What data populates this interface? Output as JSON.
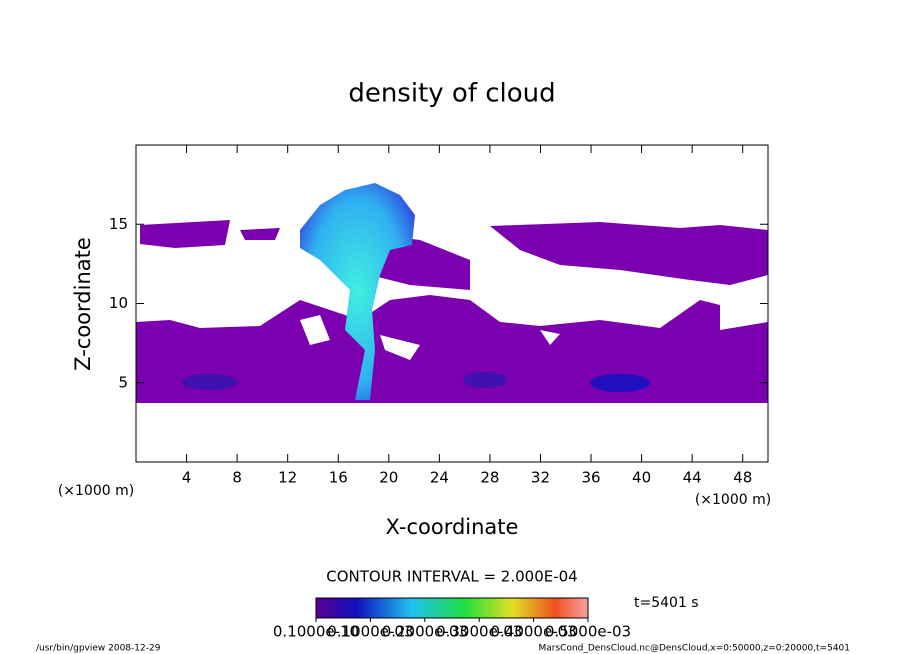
{
  "chart_data": {
    "type": "contour",
    "title": "density of cloud",
    "x_label": "X-coordinate",
    "y_label": "Z-coordinate",
    "x_unit": "(×1000 m)",
    "y_unit": "(×1000 m)",
    "xlim": [
      0,
      50
    ],
    "ylim": [
      0,
      20
    ],
    "xticks": [
      4,
      8,
      12,
      16,
      20,
      24,
      28,
      32,
      36,
      40,
      44,
      48
    ],
    "yticks": [
      5,
      10,
      15
    ],
    "contour_interval": "CONTOUR INTERVAL = 2.000E-04",
    "colorbar": {
      "lim": [
        0,
        0.0005
      ],
      "ticks": [
        {
          "value": 1e-11,
          "label": "0.1000e-10"
        },
        {
          "value": 0.0001,
          "label": "0.1000e-03"
        },
        {
          "value": 0.0002,
          "label": "0.2000e-03"
        },
        {
          "value": 0.0003,
          "label": "0.3000e-03"
        },
        {
          "value": 0.0004,
          "label": "0.4000e-03"
        },
        {
          "value": 0.0005,
          "label": "0.5000e-03"
        }
      ]
    },
    "time_label": "t=5401 s",
    "footer_left": "/usr/bin/gpview  2008-12-29",
    "footer_right": "MarsCond_DensCloud.nc@DensCloud,x=0:50000,z=0:20000,t=5401"
  }
}
